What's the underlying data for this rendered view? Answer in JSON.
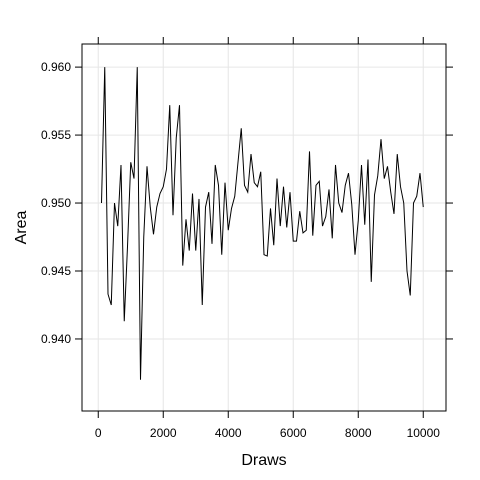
{
  "chart_data": {
    "type": "line",
    "xlabel": "Draws",
    "ylabel": "Area",
    "xlim": [
      -500,
      10700
    ],
    "ylim": [
      0.9347,
      0.9617
    ],
    "x_ticks": [
      0,
      2000,
      4000,
      6000,
      8000,
      10000
    ],
    "x_tick_labels": [
      "0",
      "2000",
      "4000",
      "6000",
      "8000",
      "10000"
    ],
    "y_ticks": [
      0.94,
      0.945,
      0.95,
      0.955,
      0.96
    ],
    "y_tick_labels": [
      "0.940",
      "0.945",
      "0.950",
      "0.955",
      "0.960"
    ],
    "grid": true,
    "series": [
      {
        "color": "#000000",
        "x": [
          100,
          200,
          300,
          400,
          500,
          600,
          700,
          800,
          900,
          1000,
          1100,
          1200,
          1300,
          1400,
          1500,
          1600,
          1700,
          1800,
          1900,
          2000,
          2100,
          2200,
          2300,
          2400,
          2500,
          2600,
          2700,
          2800,
          2900,
          3000,
          3100,
          3200,
          3300,
          3400,
          3500,
          3600,
          3700,
          3800,
          3900,
          4000,
          4100,
          4200,
          4300,
          4400,
          4500,
          4600,
          4700,
          4800,
          4900,
          5000,
          5100,
          5200,
          5300,
          5400,
          5500,
          5600,
          5700,
          5800,
          5900,
          6000,
          6100,
          6200,
          6300,
          6400,
          6500,
          6600,
          6700,
          6800,
          6900,
          7000,
          7100,
          7200,
          7300,
          7400,
          7500,
          7600,
          7700,
          7800,
          7900,
          8000,
          8100,
          8200,
          8300,
          8400,
          8500,
          8600,
          8700,
          8800,
          8900,
          9000,
          9100,
          9200,
          9300,
          9400,
          9500,
          9600,
          9700,
          9800,
          9900,
          10000
        ],
        "y": [
          0.95,
          0.96,
          0.9433,
          0.9425,
          0.95,
          0.9483,
          0.9528,
          0.9413,
          0.9468,
          0.953,
          0.9518,
          0.96,
          0.937,
          0.9475,
          0.9527,
          0.9497,
          0.9477,
          0.9497,
          0.9507,
          0.9512,
          0.9525,
          0.9572,
          0.9491,
          0.9548,
          0.9572,
          0.9454,
          0.9488,
          0.9465,
          0.9507,
          0.9465,
          0.9503,
          0.9425,
          0.9497,
          0.9508,
          0.947,
          0.9528,
          0.9513,
          0.9462,
          0.9515,
          0.948,
          0.9496,
          0.9505,
          0.953,
          0.9555,
          0.9513,
          0.9508,
          0.9536,
          0.9515,
          0.9512,
          0.9523,
          0.9462,
          0.9461,
          0.9496,
          0.9469,
          0.9518,
          0.9483,
          0.9512,
          0.9482,
          0.9508,
          0.9472,
          0.9472,
          0.9494,
          0.9478,
          0.948,
          0.9538,
          0.9476,
          0.9513,
          0.9516,
          0.9483,
          0.949,
          0.951,
          0.9474,
          0.9528,
          0.95,
          0.9493,
          0.9513,
          0.9522,
          0.9499,
          0.9462,
          0.9487,
          0.9528,
          0.9484,
          0.9532,
          0.9442,
          0.9506,
          0.952,
          0.9547,
          0.9518,
          0.9527,
          0.9508,
          0.9492,
          0.9536,
          0.9512,
          0.95,
          0.945,
          0.9432,
          0.95,
          0.9505,
          0.9522,
          0.9497
        ]
      }
    ]
  }
}
